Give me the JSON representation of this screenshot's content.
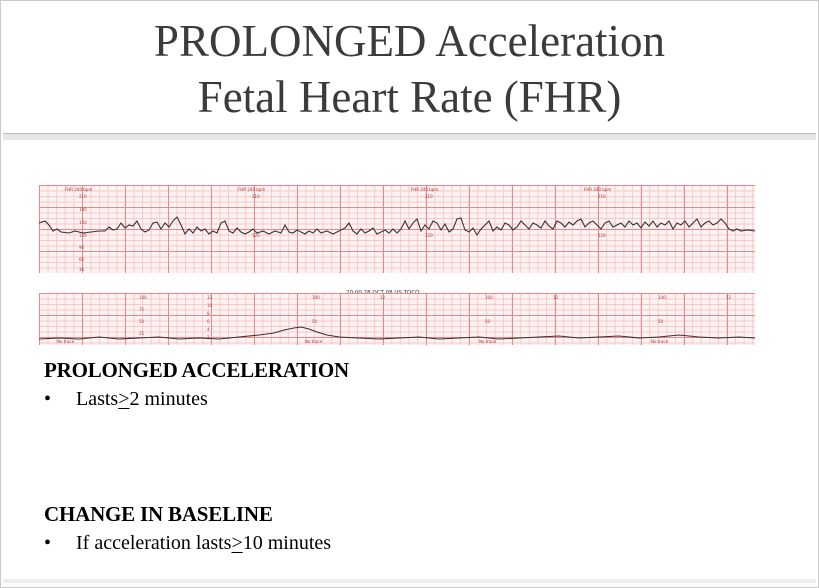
{
  "title": {
    "line1": "PROLONGED Acceleration",
    "line2": "Fetal Heart Rate (FHR)"
  },
  "tracing": {
    "fhr_header_label": "FHR 240 bpm",
    "fhr_scale": [
      "210",
      "180",
      "150",
      "120",
      "90",
      "60",
      "30"
    ],
    "toco_scale": [
      "100",
      "75",
      "50",
      "25"
    ],
    "toco_scale_kpa": [
      "12",
      "10",
      "8",
      "6",
      "4",
      "2"
    ],
    "stamp": "20:00 28 OCT 08 US TOCO",
    "footer_mark": "No trace"
  },
  "sections": [
    {
      "heading": "PROLONGED ACCELERATION",
      "bullet": "•",
      "text_before": "Lasts ",
      "symbol": ">",
      "text_after": " 2 minutes"
    },
    {
      "heading": "CHANGE IN BASELINE",
      "bullet": "•",
      "text_before": "If acceleration lasts ",
      "symbol": ">",
      "text_after": " 10 minutes"
    }
  ],
  "colors": {
    "grid_major": "#e48a8a",
    "grid_minor": "#f6c9c9",
    "paper": "#fff2f2",
    "trace": "#333333",
    "title_text": "#3b3b3b"
  }
}
